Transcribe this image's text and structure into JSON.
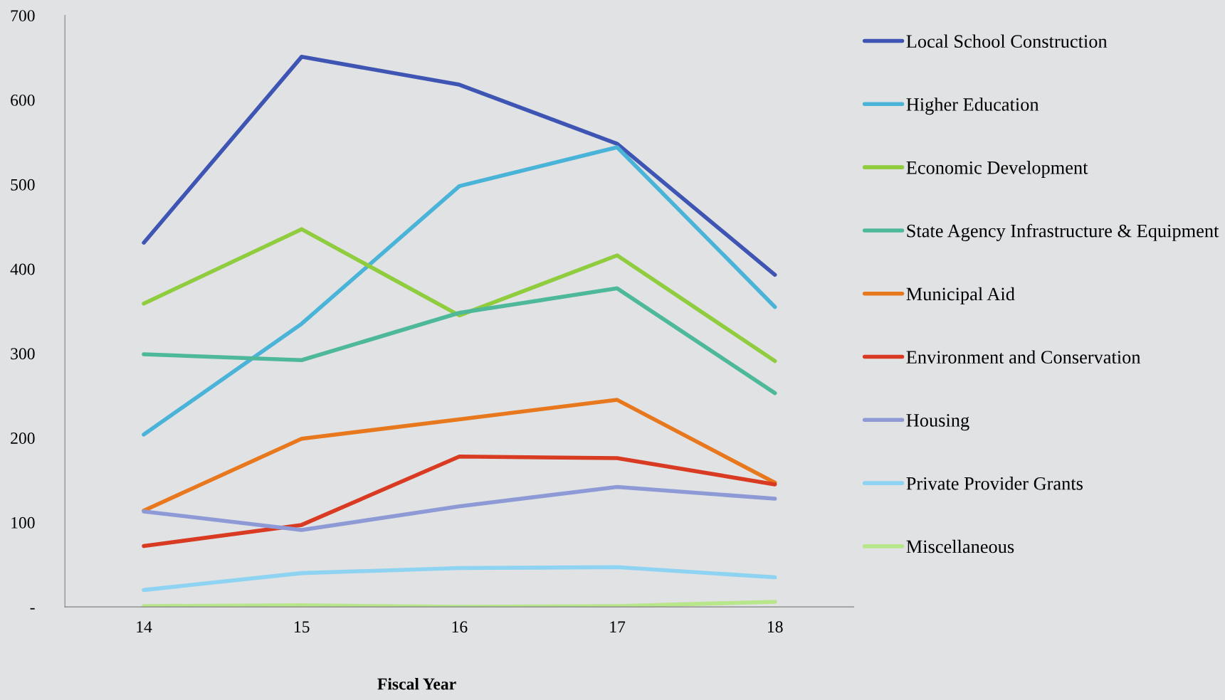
{
  "chart_data": {
    "type": "line",
    "xlabel": "Fiscal Year",
    "categories": [
      "14",
      "15",
      "16",
      "17",
      "18"
    ],
    "ylim": [
      0,
      700
    ],
    "yticks": [
      {
        "value": 0,
        "label": "-"
      },
      100,
      200,
      300,
      400,
      500,
      600,
      700
    ],
    "grid": false,
    "legend": "right",
    "marker": "none",
    "line_style": "solid",
    "series": [
      {
        "name": "Local School Construction",
        "color": "#3f55b3",
        "values": [
          431,
          651,
          618,
          548,
          393
        ]
      },
      {
        "name": "Higher Education",
        "color": "#4ab3d8",
        "values": [
          204,
          335,
          498,
          544,
          355
        ]
      },
      {
        "name": "Economic Development",
        "color": "#8fcc3e",
        "values": [
          359,
          447,
          345,
          416,
          291
        ]
      },
      {
        "name": "State Agency Infrastructure & Equipment",
        "color": "#4db89a",
        "values": [
          299,
          292,
          348,
          377,
          253
        ]
      },
      {
        "name": "Municipal Aid",
        "color": "#e8781e",
        "values": [
          114,
          199,
          222,
          245,
          147
        ]
      },
      {
        "name": "Environment and Conservation",
        "color": "#d93a22",
        "values": [
          72,
          97,
          178,
          176,
          145
        ]
      },
      {
        "name": "Housing",
        "color": "#8d9ad6",
        "values": [
          113,
          91,
          119,
          142,
          128
        ]
      },
      {
        "name": "Private Provider Grants",
        "color": "#8fd3f2",
        "values": [
          20,
          40,
          46,
          47,
          35
        ]
      },
      {
        "name": "Miscellaneous",
        "color": "#b8e68a",
        "values": [
          1,
          2,
          0,
          1,
          6
        ]
      }
    ]
  }
}
